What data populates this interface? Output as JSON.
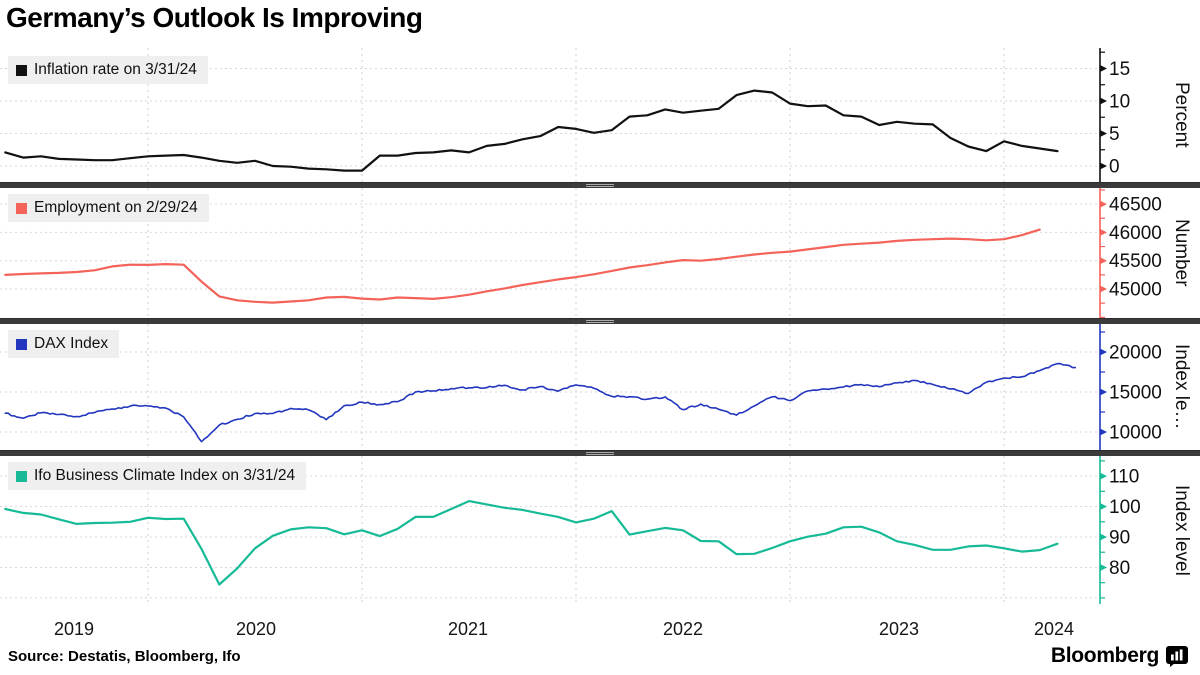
{
  "title": "Germany’s Outlook Is Improving",
  "source": "Source: Destatis, Bloomberg, Ifo",
  "branding": {
    "wordmark": "Bloomberg",
    "icon": "bloomberg-bars-icon"
  },
  "x_axis": {
    "labels": [
      "2019",
      "2020",
      "2021",
      "2022",
      "2023",
      "2024"
    ]
  },
  "chart_data": [
    {
      "type": "line",
      "id": "inflation",
      "legend": "Inflation rate on 3/31/24",
      "color": "#111111",
      "ylabel": "Percent",
      "start": "2019-04",
      "frequency": "monthly",
      "values": [
        2.1,
        1.3,
        1.5,
        1.1,
        1.0,
        0.9,
        0.9,
        1.2,
        1.5,
        1.6,
        1.7,
        1.3,
        0.8,
        0.5,
        0.8,
        0.0,
        -0.1,
        -0.4,
        -0.5,
        -0.7,
        -0.7,
        1.6,
        1.6,
        2.0,
        2.1,
        2.4,
        2.1,
        3.1,
        3.4,
        4.1,
        4.6,
        6.0,
        5.7,
        5.1,
        5.5,
        7.6,
        7.8,
        8.7,
        8.2,
        8.5,
        8.8,
        10.9,
        11.6,
        11.3,
        9.6,
        9.2,
        9.3,
        7.8,
        7.6,
        6.3,
        6.8,
        6.5,
        6.4,
        4.3,
        3.0,
        2.3,
        3.8,
        3.1,
        2.7,
        2.3
      ],
      "ylim": [
        -2.46,
        18.15
      ],
      "yticks": [
        0,
        5,
        10,
        15
      ],
      "ytick_minor": 2.5
    },
    {
      "type": "line",
      "id": "employment",
      "legend": "Employment on 2/29/24",
      "color": "#F4635A",
      "ylabel": "Number",
      "start": "2019-04",
      "frequency": "monthly",
      "values": [
        45250,
        45265,
        45275,
        45285,
        45300,
        45330,
        45400,
        45430,
        45425,
        45440,
        45430,
        45130,
        44870,
        44800,
        44775,
        44760,
        44780,
        44800,
        44850,
        44860,
        44830,
        44815,
        44850,
        44840,
        44825,
        44855,
        44900,
        44960,
        45010,
        45070,
        45120,
        45170,
        45210,
        45260,
        45320,
        45380,
        45420,
        45470,
        45510,
        45500,
        45530,
        45570,
        45610,
        45640,
        45660,
        45700,
        45740,
        45780,
        45800,
        45820,
        45850,
        45870,
        45880,
        45890,
        45880,
        45860,
        45880,
        45950,
        46050
      ],
      "ylim": [
        44488,
        46784
      ],
      "yticks": [
        45000,
        45500,
        46000,
        46500
      ],
      "ytick_minor": 250
    },
    {
      "type": "line",
      "id": "dax",
      "legend": "DAX Index",
      "color": "#2236BE",
      "ylabel": "Index le…",
      "start": "2019-04",
      "frequency": "monthly",
      "values": [
        12344,
        11727,
        12399,
        12189,
        11939,
        12428,
        12867,
        13236,
        13249,
        12982,
        11890,
        8800,
        10862,
        11587,
        12311,
        12313,
        12945,
        12761,
        11556,
        13291,
        13719,
        13433,
        13786,
        15008,
        15136,
        15421,
        15531,
        15544,
        15835,
        15261,
        15689,
        15100,
        15885,
        15471,
        14461,
        14415,
        14098,
        14388,
        12784,
        13484,
        12835,
        12114,
        13254,
        14397,
        13924,
        15128,
        15365,
        15629,
        15922,
        15664,
        16148,
        16447,
        15947,
        15387,
        14810,
        16215,
        16752,
        16904,
        17678,
        18550,
        18050
      ],
      "ylim": [
        7750,
        23500
      ],
      "yticks": [
        10000,
        15000,
        20000
      ],
      "ytick_minor": 2500
    },
    {
      "type": "line",
      "id": "ifo",
      "legend": "Ifo Business Climate Index on 3/31/24",
      "color": "#17BA97",
      "ylabel": "Index level",
      "start": "2019-04",
      "frequency": "monthly",
      "values": [
        99.2,
        97.9,
        97.4,
        95.8,
        94.3,
        94.6,
        94.7,
        95.0,
        96.3,
        95.9,
        96.0,
        86.1,
        74.4,
        79.7,
        86.3,
        90.4,
        92.5,
        93.2,
        92.9,
        90.9,
        92.2,
        90.3,
        92.7,
        96.6,
        96.6,
        99.2,
        101.8,
        100.7,
        99.6,
        98.9,
        97.7,
        96.6,
        94.8,
        96.0,
        98.5,
        90.8,
        91.9,
        93.0,
        92.2,
        88.7,
        88.6,
        84.4,
        84.5,
        86.4,
        88.6,
        90.1,
        91.1,
        93.2,
        93.4,
        91.5,
        88.6,
        87.4,
        85.8,
        85.8,
        86.9,
        87.2,
        86.3,
        85.2,
        85.7,
        87.8
      ],
      "ylim": [
        68.0,
        116.6
      ],
      "yticks": [
        80,
        90,
        100,
        110
      ],
      "ytick_minor": 5,
      "ygrid": [
        70,
        80,
        90,
        100,
        110
      ]
    }
  ]
}
